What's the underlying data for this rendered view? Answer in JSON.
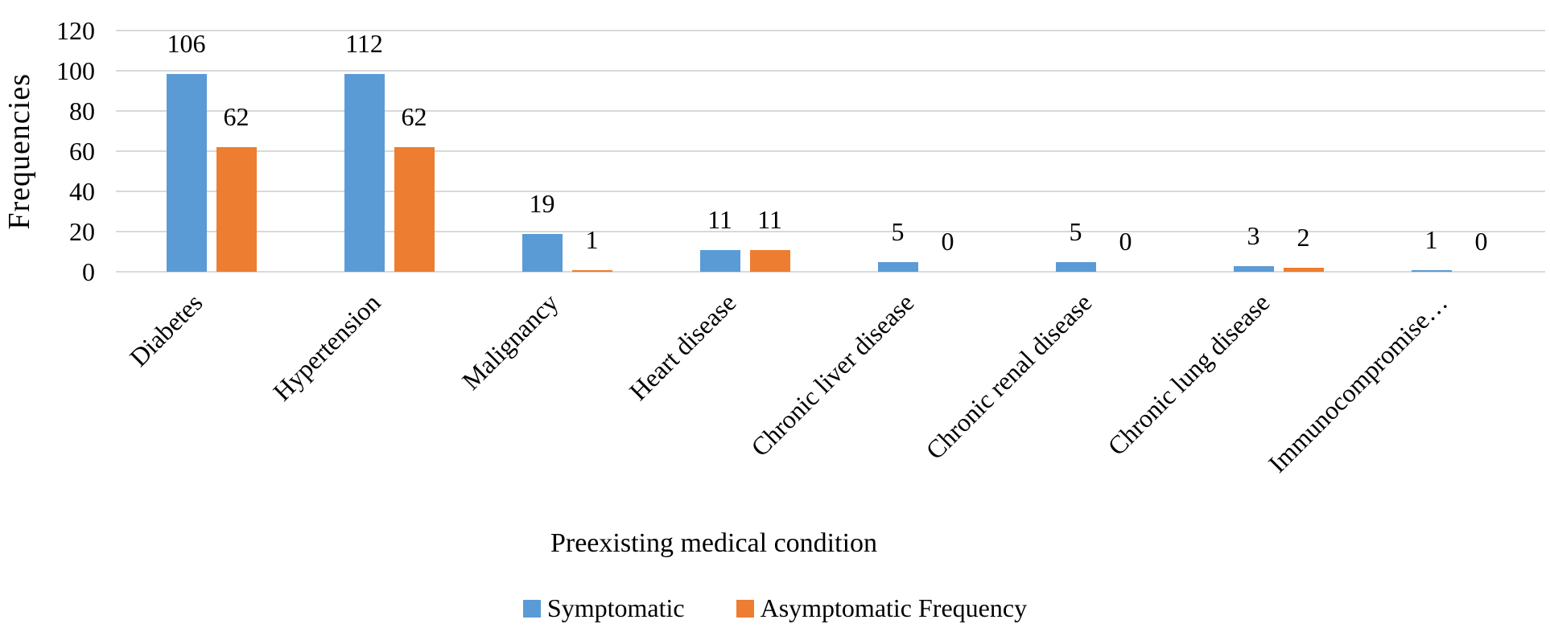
{
  "chart_data": {
    "type": "bar",
    "title": "",
    "categories": [
      "Diabetes",
      "Hypertension",
      "Malignancy",
      "Heart disease",
      "Chronic liver disease",
      "Chronic renal disease",
      "Chronic lung disease",
      "Immunocompromise…"
    ],
    "series": [
      {
        "name": "Symptomatic",
        "color": "#5B9BD5",
        "values": [
          106,
          112,
          19,
          11,
          5,
          5,
          3,
          1
        ]
      },
      {
        "name": "Asymptomatic Frequency",
        "color": "#ED7D31",
        "values": [
          62,
          62,
          1,
          11,
          0,
          0,
          2,
          0
        ]
      }
    ],
    "xlabel": "Preexisting medical condition",
    "ylabel": "Frequencies",
    "ylim": [
      0,
      120
    ],
    "yticks": [
      0,
      20,
      40,
      60,
      80,
      100,
      120
    ],
    "grid": true,
    "gridline_color": "#D9D9D9",
    "data_labels": true,
    "legend_position": "bottom"
  }
}
